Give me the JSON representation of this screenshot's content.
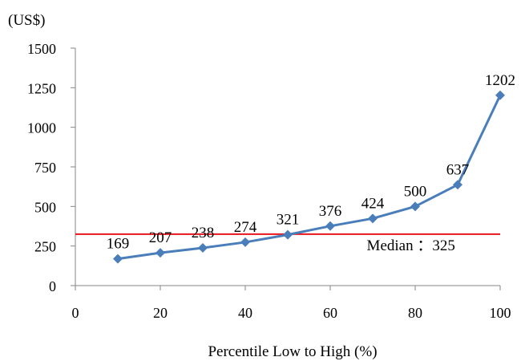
{
  "chart_data": {
    "type": "line",
    "unit_label": "(US$)",
    "xlabel": "Percentile Low to High (%)",
    "ylabel": "",
    "xlim": [
      0,
      100
    ],
    "ylim": [
      0,
      1500
    ],
    "x_ticks": [
      0,
      20,
      40,
      60,
      80,
      100
    ],
    "y_ticks": [
      0,
      250,
      500,
      750,
      1000,
      1250,
      1500
    ],
    "x_tick_labels": [
      "0",
      "20",
      "40",
      "60",
      "80",
      "100"
    ],
    "y_tick_labels": [
      "0",
      "250",
      "500",
      "750",
      "1000",
      "1250",
      "1500"
    ],
    "grid": false,
    "series": [
      {
        "x": [
          10,
          20,
          30,
          40,
          50,
          60,
          70,
          80,
          90,
          100
        ],
        "values": [
          169,
          207,
          238,
          274,
          321,
          376,
          424,
          500,
          637,
          1202
        ],
        "labels": [
          "169",
          "207",
          "238",
          "274",
          "321",
          "376",
          "424",
          "500",
          "637",
          "1202"
        ],
        "color": "#4a7ebb",
        "marker": "diamond"
      }
    ],
    "reference_line": {
      "value": 325,
      "label": "Median ：325",
      "color": "#e8141b"
    }
  }
}
